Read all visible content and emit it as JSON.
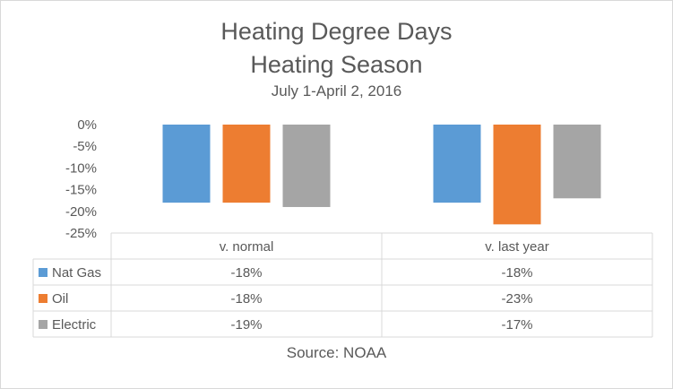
{
  "chart_data": {
    "type": "bar",
    "title": "Heating Degree Days",
    "subtitle": "Heating Season",
    "date_range": "July 1-April 2, 2016",
    "categories": [
      "v. normal",
      "v. last year"
    ],
    "series": [
      {
        "name": "Nat Gas",
        "color": "#5b9bd5",
        "values": [
          -18,
          -18
        ],
        "labels": [
          "-18%",
          "-18%"
        ]
      },
      {
        "name": "Oil",
        "color": "#ed7d31",
        "values": [
          -18,
          -23
        ],
        "labels": [
          "-18%",
          "-23%"
        ]
      },
      {
        "name": "Electric",
        "color": "#a5a5a5",
        "values": [
          -19,
          -17
        ],
        "labels": [
          "-19%",
          "-17%"
        ]
      }
    ],
    "ylim": [
      -25,
      0
    ],
    "yticks": [
      0,
      -5,
      -10,
      -15,
      -20,
      -25
    ],
    "ytick_labels": [
      "0%",
      "-5%",
      "-10%",
      "-15%",
      "-20%",
      "-25%"
    ],
    "legend": "data-table",
    "grid": false,
    "source": "Source: NOAA"
  }
}
